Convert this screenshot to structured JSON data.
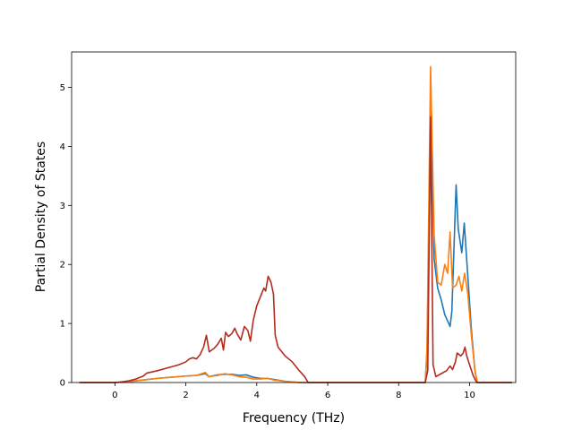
{
  "chart_data": {
    "type": "line",
    "title": "",
    "xlabel": "Frequency (THz)",
    "ylabel": "Partial Density of States",
    "xlim": [
      -1.22,
      11.3
    ],
    "ylim": [
      0,
      5.6
    ],
    "xticks": [
      0,
      2,
      4,
      6,
      8,
      10
    ],
    "yticks": [
      0,
      1,
      2,
      3,
      4,
      5
    ],
    "grid": false,
    "legend": "none",
    "series": [
      {
        "color": "#1f77b4",
        "points": [
          [
            -1.0,
            0.0
          ],
          [
            0.0,
            0.0
          ],
          [
            0.3,
            0.01
          ],
          [
            0.6,
            0.03
          ],
          [
            0.9,
            0.05
          ],
          [
            1.2,
            0.07
          ],
          [
            1.6,
            0.09
          ],
          [
            2.0,
            0.11
          ],
          [
            2.3,
            0.12
          ],
          [
            2.55,
            0.15
          ],
          [
            2.65,
            0.1
          ],
          [
            2.9,
            0.13
          ],
          [
            3.1,
            0.14
          ],
          [
            3.3,
            0.14
          ],
          [
            3.5,
            0.12
          ],
          [
            3.7,
            0.13
          ],
          [
            3.9,
            0.09
          ],
          [
            4.1,
            0.07
          ],
          [
            4.3,
            0.07
          ],
          [
            4.5,
            0.05
          ],
          [
            4.8,
            0.02
          ],
          [
            5.2,
            0.0
          ],
          [
            6.0,
            0.0
          ],
          [
            7.0,
            0.0
          ],
          [
            8.0,
            0.0
          ],
          [
            8.75,
            0.0
          ],
          [
            8.8,
            0.5
          ],
          [
            8.9,
            4.6
          ],
          [
            9.0,
            2.1
          ],
          [
            9.1,
            1.6
          ],
          [
            9.2,
            1.4
          ],
          [
            9.3,
            1.15
          ],
          [
            9.45,
            0.95
          ],
          [
            9.5,
            1.2
          ],
          [
            9.62,
            3.35
          ],
          [
            9.68,
            2.6
          ],
          [
            9.78,
            2.2
          ],
          [
            9.85,
            2.7
          ],
          [
            9.95,
            1.8
          ],
          [
            10.05,
            0.9
          ],
          [
            10.15,
            0.2
          ],
          [
            10.22,
            0.0
          ],
          [
            11.2,
            0.0
          ]
        ]
      },
      {
        "color": "#ff7f0e",
        "points": [
          [
            -1.0,
            0.0
          ],
          [
            0.0,
            0.0
          ],
          [
            0.3,
            0.01
          ],
          [
            0.6,
            0.03
          ],
          [
            0.9,
            0.05
          ],
          [
            1.2,
            0.07
          ],
          [
            1.6,
            0.09
          ],
          [
            2.0,
            0.11
          ],
          [
            2.3,
            0.12
          ],
          [
            2.55,
            0.17
          ],
          [
            2.65,
            0.1
          ],
          [
            2.9,
            0.12
          ],
          [
            3.1,
            0.15
          ],
          [
            3.3,
            0.13
          ],
          [
            3.5,
            0.1
          ],
          [
            3.7,
            0.09
          ],
          [
            3.9,
            0.06
          ],
          [
            4.1,
            0.06
          ],
          [
            4.3,
            0.07
          ],
          [
            4.5,
            0.04
          ],
          [
            4.8,
            0.02
          ],
          [
            5.2,
            0.0
          ],
          [
            6.0,
            0.0
          ],
          [
            7.0,
            0.0
          ],
          [
            8.0,
            0.0
          ],
          [
            8.75,
            0.0
          ],
          [
            8.8,
            0.6
          ],
          [
            8.9,
            5.35
          ],
          [
            9.0,
            2.5
          ],
          [
            9.1,
            1.7
          ],
          [
            9.2,
            1.65
          ],
          [
            9.3,
            2.0
          ],
          [
            9.38,
            1.85
          ],
          [
            9.45,
            2.55
          ],
          [
            9.52,
            1.6
          ],
          [
            9.62,
            1.65
          ],
          [
            9.7,
            1.8
          ],
          [
            9.78,
            1.55
          ],
          [
            9.86,
            1.85
          ],
          [
            9.95,
            1.5
          ],
          [
            10.05,
            0.8
          ],
          [
            10.15,
            0.2
          ],
          [
            10.22,
            0.0
          ],
          [
            11.2,
            0.0
          ]
        ]
      },
      {
        "color": "#b22d20",
        "points": [
          [
            -1.0,
            0.0
          ],
          [
            0.0,
            0.0
          ],
          [
            0.2,
            0.01
          ],
          [
            0.4,
            0.03
          ],
          [
            0.6,
            0.06
          ],
          [
            0.8,
            0.11
          ],
          [
            0.9,
            0.16
          ],
          [
            1.2,
            0.2
          ],
          [
            1.5,
            0.25
          ],
          [
            1.8,
            0.3
          ],
          [
            2.0,
            0.35
          ],
          [
            2.1,
            0.4
          ],
          [
            2.2,
            0.42
          ],
          [
            2.3,
            0.4
          ],
          [
            2.4,
            0.47
          ],
          [
            2.5,
            0.6
          ],
          [
            2.58,
            0.8
          ],
          [
            2.66,
            0.52
          ],
          [
            2.8,
            0.58
          ],
          [
            2.9,
            0.65
          ],
          [
            3.0,
            0.75
          ],
          [
            3.06,
            0.55
          ],
          [
            3.12,
            0.85
          ],
          [
            3.2,
            0.78
          ],
          [
            3.3,
            0.83
          ],
          [
            3.38,
            0.92
          ],
          [
            3.45,
            0.82
          ],
          [
            3.55,
            0.72
          ],
          [
            3.65,
            0.95
          ],
          [
            3.75,
            0.88
          ],
          [
            3.82,
            0.7
          ],
          [
            3.9,
            1.05
          ],
          [
            4.0,
            1.3
          ],
          [
            4.1,
            1.45
          ],
          [
            4.2,
            1.6
          ],
          [
            4.25,
            1.55
          ],
          [
            4.32,
            1.8
          ],
          [
            4.4,
            1.7
          ],
          [
            4.47,
            1.5
          ],
          [
            4.52,
            0.8
          ],
          [
            4.6,
            0.6
          ],
          [
            4.8,
            0.45
          ],
          [
            5.0,
            0.35
          ],
          [
            5.2,
            0.2
          ],
          [
            5.35,
            0.1
          ],
          [
            5.45,
            0.0
          ],
          [
            6.0,
            0.0
          ],
          [
            7.0,
            0.0
          ],
          [
            8.0,
            0.0
          ],
          [
            8.75,
            0.0
          ],
          [
            8.82,
            0.2
          ],
          [
            8.9,
            4.5
          ],
          [
            8.97,
            0.3
          ],
          [
            9.05,
            0.1
          ],
          [
            9.2,
            0.15
          ],
          [
            9.35,
            0.2
          ],
          [
            9.45,
            0.28
          ],
          [
            9.52,
            0.22
          ],
          [
            9.6,
            0.35
          ],
          [
            9.65,
            0.5
          ],
          [
            9.75,
            0.45
          ],
          [
            9.82,
            0.5
          ],
          [
            9.87,
            0.6
          ],
          [
            9.92,
            0.45
          ],
          [
            10.0,
            0.3
          ],
          [
            10.1,
            0.12
          ],
          [
            10.2,
            0.0
          ],
          [
            11.2,
            0.0
          ]
        ]
      }
    ]
  }
}
